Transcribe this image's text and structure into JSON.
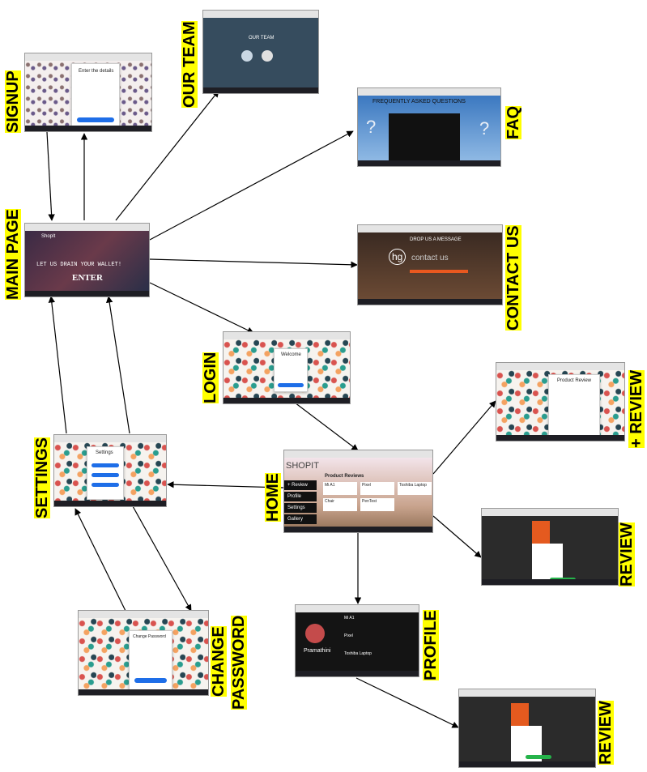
{
  "labels": {
    "signup": "SIGNUP",
    "our_team": "OUR TEAM",
    "faq": "FAQ",
    "contact_us": "CONTACT US",
    "main_page": "MAIN PAGE",
    "login": "LOGIN",
    "add_review": "+ REVIEW",
    "settings": "SETTINGS",
    "home": "HOME",
    "review": "REVIEW",
    "change_password_1": "CHANGE",
    "change_password_2": "PASSWORD",
    "profile": "PROFILE"
  },
  "screens": {
    "signup": {
      "title": "Enter the details"
    },
    "our_team": {
      "title": "OUR TEAM"
    },
    "faq": {
      "title": "FREQUENTLY ASKED QUESTIONS"
    },
    "contact": {
      "title": "DROP US A MESSAGE",
      "logo": "hg",
      "watermark": "contact us"
    },
    "main": {
      "brand": "ShopIt",
      "headline": "LET US DRAIN YOUR WALLET!",
      "cta": "ENTER"
    },
    "login": {
      "title": "Welcome"
    },
    "add_review": {
      "title": "Product Review"
    },
    "settings": {
      "title": "Settings"
    },
    "home": {
      "brand": "SHOPIT",
      "section": "Product Reviews",
      "menu": [
        "+ Review",
        "Profile",
        "Settings",
        "Gallery"
      ],
      "cards": [
        "Mi A1",
        "Pixel",
        "Toshiba Laptop",
        "Chair",
        "PenTest"
      ]
    },
    "change_password": {
      "title": "Change Password"
    },
    "profile": {
      "name": "Pramathini",
      "items": [
        "Mi A1",
        "Pixel",
        "Toshiba Laptop"
      ]
    }
  }
}
